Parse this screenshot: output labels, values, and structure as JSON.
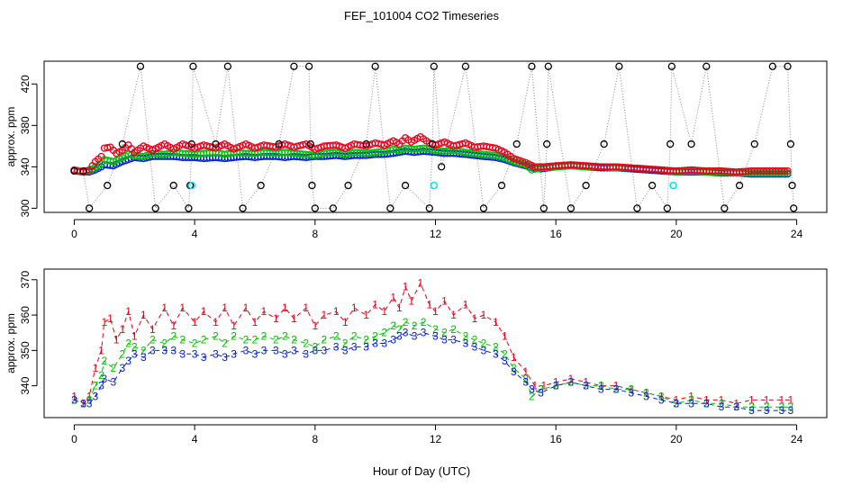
{
  "title": "FEF_101004  CO2 Timeseries",
  "xlabel": "Hour of Day (UTC)",
  "colors": {
    "black": "#000000",
    "red": "#e8001c",
    "green": "#00c000",
    "blue": "#0020d0",
    "cyan": "#00e5ee",
    "connector": "#888888"
  },
  "chart_data": [
    {
      "type": "scatter",
      "panel": "top",
      "ylabel": "approx. ppm",
      "xlim": [
        -1,
        25
      ],
      "ylim": [
        296,
        442
      ],
      "x_ticks": [
        0,
        4,
        8,
        12,
        16,
        20,
        24
      ],
      "y_ticks": [
        300,
        340,
        380,
        420
      ],
      "y_tick_labels": [
        "300",
        "340",
        "380",
        "420"
      ],
      "series": [
        {
          "name": "raw (black)",
          "color": "black",
          "points": [
            [
              0,
              336
            ],
            [
              0.3,
              336
            ],
            [
              0.5,
              300
            ],
            [
              1.1,
              322
            ],
            [
              1.6,
              362
            ],
            [
              2.2,
              437
            ],
            [
              2.7,
              300
            ],
            [
              3.3,
              322
            ],
            [
              3.8,
              300
            ],
            [
              3.85,
              322
            ],
            [
              3.9,
              362
            ],
            [
              3.95,
              437
            ],
            [
              4.7,
              362
            ],
            [
              5.1,
              437
            ],
            [
              5.6,
              300
            ],
            [
              6.2,
              322
            ],
            [
              6.8,
              362
            ],
            [
              7.3,
              437
            ],
            [
              7.8,
              437
            ],
            [
              7.85,
              362
            ],
            [
              7.9,
              322
            ],
            [
              8.0,
              300
            ],
            [
              8.6,
              300
            ],
            [
              9.1,
              322
            ],
            [
              9.7,
              362
            ],
            [
              10.0,
              437
            ],
            [
              10.5,
              300
            ],
            [
              11.0,
              322
            ],
            [
              11.8,
              300
            ],
            [
              11.9,
              362
            ],
            [
              11.95,
              437
            ],
            [
              12.2,
              340
            ],
            [
              13.0,
              437
            ],
            [
              13.6,
              300
            ],
            [
              14.2,
              322
            ],
            [
              14.7,
              362
            ],
            [
              15.2,
              437
            ],
            [
              15.6,
              300
            ],
            [
              15.7,
              362
            ],
            [
              15.75,
              437
            ],
            [
              16.5,
              300
            ],
            [
              17.0,
              322
            ],
            [
              17.6,
              362
            ],
            [
              18.1,
              437
            ],
            [
              18.7,
              300
            ],
            [
              19.2,
              322
            ],
            [
              19.7,
              300
            ],
            [
              19.8,
              362
            ],
            [
              19.85,
              437
            ],
            [
              20.5,
              362
            ],
            [
              21.0,
              437
            ],
            [
              21.6,
              300
            ],
            [
              22.1,
              322
            ],
            [
              22.6,
              362
            ],
            [
              23.2,
              437
            ],
            [
              23.7,
              437
            ],
            [
              23.8,
              362
            ],
            [
              23.85,
              322
            ],
            [
              23.9,
              300
            ]
          ]
        },
        {
          "name": "cyan markers",
          "color": "cyan",
          "points": [
            [
              3.9,
              322
            ],
            [
              11.95,
              322
            ],
            [
              19.9,
              322
            ]
          ]
        }
      ]
    },
    {
      "type": "line",
      "panel": "bottom",
      "ylabel": "approx. ppm",
      "xlim": [
        -1,
        25
      ],
      "ylim": [
        331,
        373
      ],
      "x_ticks": [
        0,
        4,
        8,
        12,
        16,
        20,
        24
      ],
      "y_ticks": [
        340,
        350,
        360,
        370
      ],
      "y_tick_labels": [
        "340",
        "350",
        "360",
        "370"
      ],
      "series": [
        {
          "name": "1",
          "label": "1",
          "color": "red",
          "points": [
            [
              0,
              337
            ],
            [
              0.3,
              335
            ],
            [
              0.5,
              337
            ],
            [
              0.7,
              345
            ],
            [
              0.9,
              350
            ],
            [
              1.0,
              358
            ],
            [
              1.2,
              359
            ],
            [
              1.4,
              353
            ],
            [
              1.6,
              356
            ],
            [
              1.8,
              361
            ],
            [
              2.0,
              354
            ],
            [
              2.3,
              360
            ],
            [
              2.6,
              356
            ],
            [
              3.0,
              362
            ],
            [
              3.3,
              357
            ],
            [
              3.6,
              362
            ],
            [
              4.0,
              358
            ],
            [
              4.3,
              361
            ],
            [
              4.7,
              358
            ],
            [
              5.0,
              362
            ],
            [
              5.3,
              357
            ],
            [
              5.7,
              362
            ],
            [
              6.0,
              358
            ],
            [
              6.3,
              361
            ],
            [
              6.7,
              359
            ],
            [
              7.0,
              362
            ],
            [
              7.3,
              359
            ],
            [
              7.7,
              362
            ],
            [
              8.0,
              357
            ],
            [
              8.3,
              360
            ],
            [
              8.7,
              361
            ],
            [
              9.0,
              358
            ],
            [
              9.3,
              362
            ],
            [
              9.7,
              360
            ],
            [
              10.0,
              363
            ],
            [
              10.3,
              361
            ],
            [
              10.6,
              365
            ],
            [
              10.8,
              362
            ],
            [
              11.0,
              368
            ],
            [
              11.2,
              364
            ],
            [
              11.5,
              369
            ],
            [
              11.8,
              363
            ],
            [
              12.0,
              361
            ],
            [
              12.3,
              364
            ],
            [
              12.6,
              360
            ],
            [
              13.0,
              363
            ],
            [
              13.3,
              359
            ],
            [
              13.6,
              360
            ],
            [
              14.0,
              358
            ],
            [
              14.3,
              354
            ],
            [
              14.6,
              348
            ],
            [
              15.0,
              344
            ],
            [
              15.3,
              340
            ],
            [
              15.6,
              340
            ],
            [
              16.0,
              341
            ],
            [
              16.5,
              342
            ],
            [
              17.0,
              341
            ],
            [
              17.5,
              340
            ],
            [
              18.0,
              340
            ],
            [
              18.5,
              339
            ],
            [
              19.0,
              338
            ],
            [
              19.5,
              337
            ],
            [
              20.0,
              336
            ],
            [
              20.5,
              337
            ],
            [
              21.0,
              336
            ],
            [
              21.5,
              336
            ],
            [
              22.0,
              335
            ],
            [
              22.5,
              336
            ],
            [
              23.0,
              336
            ],
            [
              23.5,
              336
            ],
            [
              23.8,
              336
            ]
          ]
        },
        {
          "name": "2",
          "label": "2",
          "color": "green",
          "points": [
            [
              0,
              336
            ],
            [
              0.3,
              335
            ],
            [
              0.5,
              336
            ],
            [
              0.7,
              340
            ],
            [
              0.9,
              343
            ],
            [
              1.0,
              347
            ],
            [
              1.3,
              345
            ],
            [
              1.6,
              349
            ],
            [
              1.8,
              352
            ],
            [
              2.0,
              351
            ],
            [
              2.3,
              350
            ],
            [
              2.6,
              353
            ],
            [
              3.0,
              352
            ],
            [
              3.3,
              354
            ],
            [
              3.6,
              353
            ],
            [
              4.0,
              352
            ],
            [
              4.3,
              353
            ],
            [
              4.7,
              354
            ],
            [
              5.0,
              352
            ],
            [
              5.3,
              354
            ],
            [
              5.7,
              353
            ],
            [
              6.0,
              353
            ],
            [
              6.3,
              354
            ],
            [
              6.7,
              353
            ],
            [
              7.0,
              354
            ],
            [
              7.3,
              353
            ],
            [
              7.7,
              352
            ],
            [
              8.0,
              351
            ],
            [
              8.3,
              353
            ],
            [
              8.7,
              354
            ],
            [
              9.0,
              352
            ],
            [
              9.3,
              354
            ],
            [
              9.7,
              353
            ],
            [
              10.0,
              354
            ],
            [
              10.3,
              355
            ],
            [
              10.6,
              357
            ],
            [
              10.8,
              356
            ],
            [
              11.0,
              358
            ],
            [
              11.3,
              357
            ],
            [
              11.6,
              358
            ],
            [
              12.0,
              356
            ],
            [
              12.3,
              355
            ],
            [
              12.6,
              356
            ],
            [
              13.0,
              354
            ],
            [
              13.3,
              353
            ],
            [
              13.6,
              352
            ],
            [
              14.0,
              351
            ],
            [
              14.3,
              349
            ],
            [
              14.6,
              345
            ],
            [
              15.0,
              342
            ],
            [
              15.2,
              337
            ],
            [
              15.5,
              339
            ],
            [
              16.0,
              340
            ],
            [
              16.5,
              341
            ],
            [
              17.0,
              340
            ],
            [
              17.5,
              340
            ],
            [
              18.0,
              339
            ],
            [
              18.5,
              339
            ],
            [
              19.0,
              338
            ],
            [
              19.5,
              337
            ],
            [
              20.0,
              335
            ],
            [
              20.5,
              336
            ],
            [
              21.0,
              335
            ],
            [
              21.5,
              335
            ],
            [
              22.0,
              334
            ],
            [
              22.5,
              334
            ],
            [
              23.0,
              334
            ],
            [
              23.5,
              334
            ],
            [
              23.8,
              334
            ]
          ]
        },
        {
          "name": "3",
          "label": "3",
          "color": "blue",
          "points": [
            [
              0,
              336
            ],
            [
              0.3,
              335
            ],
            [
              0.5,
              335
            ],
            [
              0.7,
              337
            ],
            [
              0.9,
              340
            ],
            [
              1.0,
              342
            ],
            [
              1.3,
              341
            ],
            [
              1.6,
              345
            ],
            [
              1.8,
              347
            ],
            [
              2.0,
              349
            ],
            [
              2.3,
              348
            ],
            [
              2.6,
              350
            ],
            [
              3.0,
              350
            ],
            [
              3.3,
              350
            ],
            [
              3.6,
              349
            ],
            [
              4.0,
              349
            ],
            [
              4.3,
              348
            ],
            [
              4.7,
              349
            ],
            [
              5.0,
              348
            ],
            [
              5.3,
              349
            ],
            [
              5.7,
              350
            ],
            [
              6.0,
              349
            ],
            [
              6.3,
              350
            ],
            [
              6.7,
              350
            ],
            [
              7.0,
              349
            ],
            [
              7.3,
              350
            ],
            [
              7.7,
              349
            ],
            [
              8.0,
              350
            ],
            [
              8.3,
              350
            ],
            [
              8.7,
              351
            ],
            [
              9.0,
              350
            ],
            [
              9.3,
              351
            ],
            [
              9.7,
              351
            ],
            [
              10.0,
              352
            ],
            [
              10.3,
              352
            ],
            [
              10.6,
              353
            ],
            [
              10.8,
              354
            ],
            [
              11.0,
              355
            ],
            [
              11.3,
              354
            ],
            [
              11.6,
              355
            ],
            [
              12.0,
              354
            ],
            [
              12.3,
              353
            ],
            [
              12.6,
              353
            ],
            [
              13.0,
              352
            ],
            [
              13.3,
              351
            ],
            [
              13.6,
              350
            ],
            [
              14.0,
              349
            ],
            [
              14.3,
              347
            ],
            [
              14.6,
              344
            ],
            [
              15.0,
              341
            ],
            [
              15.2,
              339
            ],
            [
              15.5,
              338
            ],
            [
              16.0,
              340
            ],
            [
              16.5,
              341
            ],
            [
              17.0,
              340
            ],
            [
              17.5,
              339
            ],
            [
              18.0,
              339
            ],
            [
              18.5,
              338
            ],
            [
              19.0,
              337
            ],
            [
              19.5,
              336
            ],
            [
              20.0,
              335
            ],
            [
              20.5,
              335
            ],
            [
              21.0,
              335
            ],
            [
              21.5,
              334
            ],
            [
              22.0,
              334
            ],
            [
              22.5,
              333
            ],
            [
              23.0,
              333
            ],
            [
              23.5,
              333
            ],
            [
              23.8,
              333
            ]
          ]
        }
      ]
    }
  ]
}
